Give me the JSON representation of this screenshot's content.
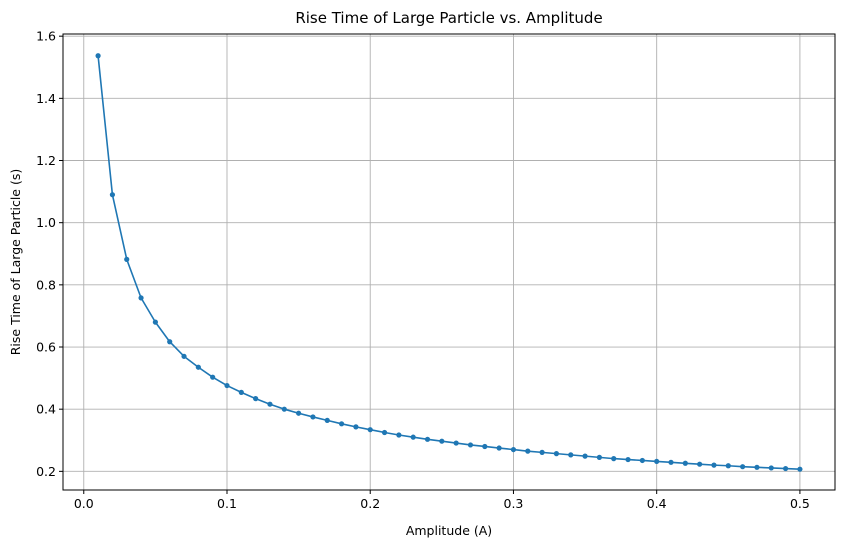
{
  "chart_data": {
    "type": "line",
    "title": "Rise Time of Large Particle vs. Amplitude",
    "xlabel": "Amplitude (A)",
    "ylabel": "Rise Time of Large Particle (s)",
    "xlim": [
      -0.0145,
      0.5245
    ],
    "ylim": [
      0.14,
      1.607
    ],
    "x_ticks": [
      0.0,
      0.1,
      0.2,
      0.3,
      0.4,
      0.5
    ],
    "x_tick_labels": [
      "0.0",
      "0.1",
      "0.2",
      "0.3",
      "0.4",
      "0.5"
    ],
    "y_ticks": [
      0.2,
      0.4,
      0.6,
      0.8,
      1.0,
      1.2,
      1.4,
      1.6
    ],
    "y_tick_labels": [
      "0.2",
      "0.4",
      "0.6",
      "0.8",
      "1.0",
      "1.2",
      "1.4",
      "1.6"
    ],
    "grid": true,
    "series": [
      {
        "color": "#1f77b4",
        "marker": "circle",
        "x": [
          0.01,
          0.02,
          0.03,
          0.04,
          0.05,
          0.06,
          0.07,
          0.08,
          0.09,
          0.1,
          0.11,
          0.12,
          0.13,
          0.14,
          0.15,
          0.16,
          0.17,
          0.18,
          0.19,
          0.2,
          0.21,
          0.22,
          0.23,
          0.24,
          0.25,
          0.26,
          0.27,
          0.28,
          0.29,
          0.3,
          0.31,
          0.32,
          0.33,
          0.34,
          0.35,
          0.36,
          0.37,
          0.38,
          0.39,
          0.4,
          0.41,
          0.42,
          0.43,
          0.44,
          0.45,
          0.46,
          0.47,
          0.48,
          0.49,
          0.5
        ],
        "values": [
          1.537,
          1.09,
          0.882,
          0.758,
          0.68,
          0.617,
          0.57,
          0.535,
          0.503,
          0.476,
          0.454,
          0.434,
          0.416,
          0.4,
          0.387,
          0.375,
          0.364,
          0.353,
          0.343,
          0.334,
          0.325,
          0.317,
          0.31,
          0.303,
          0.297,
          0.291,
          0.285,
          0.28,
          0.275,
          0.27,
          0.265,
          0.261,
          0.257,
          0.253,
          0.249,
          0.245,
          0.241,
          0.238,
          0.235,
          0.232,
          0.229,
          0.226,
          0.223,
          0.22,
          0.218,
          0.215,
          0.213,
          0.211,
          0.209,
          0.207
        ]
      }
    ]
  }
}
